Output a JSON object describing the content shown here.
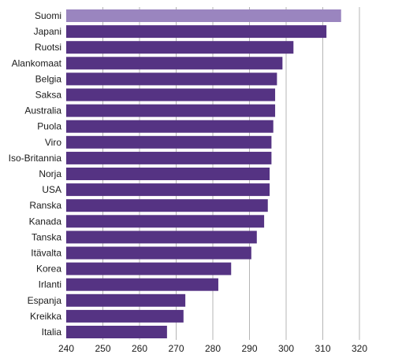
{
  "chart_data": {
    "type": "bar",
    "orientation": "horizontal",
    "categories": [
      "Suomi",
      "Japani",
      "Ruotsi",
      "Alankomaat",
      "Belgia",
      "Saksa",
      "Australia",
      "Puola",
      "Viro",
      "Iso-Britannia",
      "Norja",
      "USA",
      "Ranska",
      "Kanada",
      "Tanska",
      "Itävalta",
      "Korea",
      "Irlanti",
      "Espanja",
      "Kreikka",
      "Italia"
    ],
    "values": [
      315,
      311,
      302,
      299,
      297.5,
      297,
      297,
      296.5,
      296,
      296,
      295.5,
      295.5,
      295,
      294,
      292,
      290.5,
      285,
      281.5,
      272.5,
      272,
      267.5
    ],
    "highlight_category": "Suomi",
    "xlim": [
      240,
      320
    ],
    "xticks": [
      240,
      250,
      260,
      270,
      280,
      290,
      300,
      310,
      320
    ],
    "grid": "vertical",
    "title": "",
    "xlabel": "",
    "ylabel": "",
    "colors": {
      "bar": "#553383",
      "highlight": "#9a85bf",
      "grid": "#b5b5b5",
      "text": "#1a1a1a"
    }
  }
}
